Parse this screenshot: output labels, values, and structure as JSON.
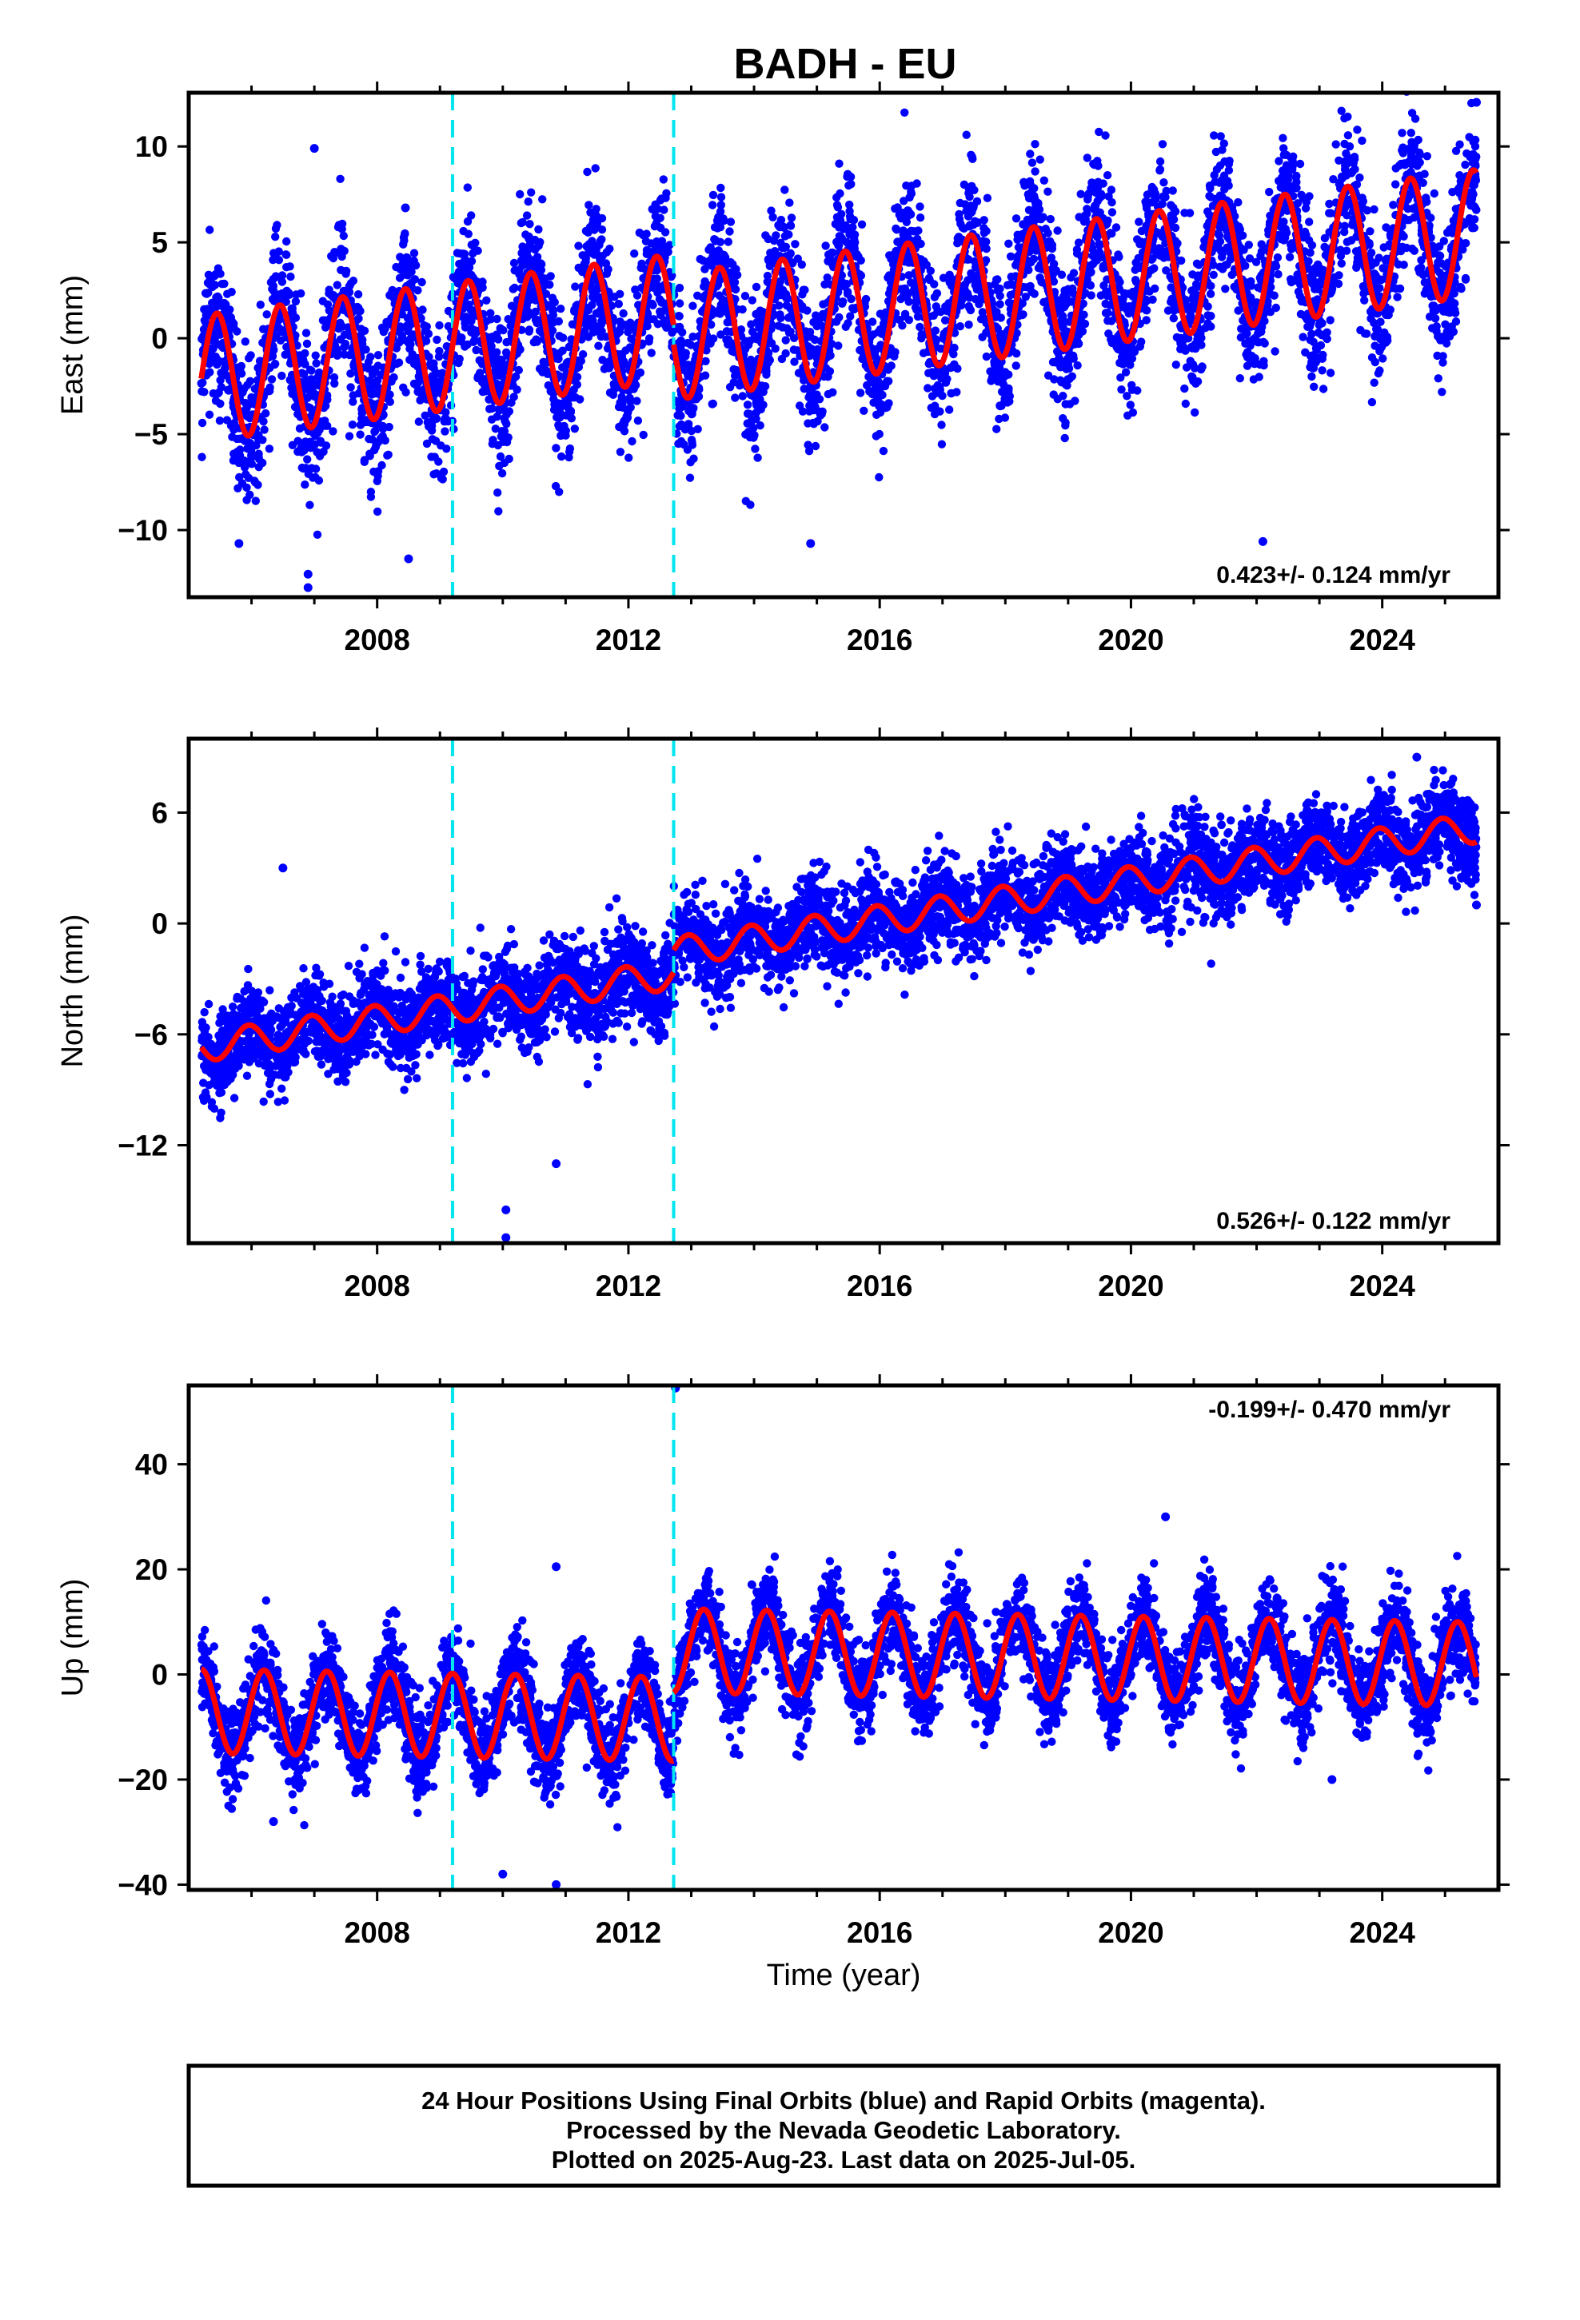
{
  "title": "BADH - EU",
  "xlabel": "Time (year)",
  "footer": {
    "lines": [
      "24 Hour Positions Using Final Orbits (blue) and Rapid Orbits (magenta).",
      "Processed by the Nevada Geodetic Laboratory.",
      "Plotted on 2025-Aug-23. Last data on 2025-Jul-05."
    ]
  },
  "colors": {
    "data_points": "#0000ff",
    "model_fit": "#ff0000",
    "break_lines": "#00e5ee",
    "frame": "#000000"
  },
  "chart_data": [
    {
      "type": "scatter",
      "component": "east",
      "ylabel": "East (mm)",
      "rate_text": "0.423+/- 0.124 mm/yr",
      "rate_position": "bottom-right",
      "xlim": [
        2005.0,
        2025.85
      ],
      "ylim": [
        -13.5,
        12.8
      ],
      "x_ticks": [
        2008,
        2012,
        2016,
        2020,
        2024
      ],
      "x_tick_labels": [
        "2008",
        "2012",
        "2016",
        "2020",
        "2024"
      ],
      "y_ticks": [
        -10,
        -5,
        0,
        5,
        10
      ],
      "y_tick_labels": [
        "−10",
        "−5",
        "0",
        "5",
        "10"
      ],
      "breaks": [
        2009.2,
        2012.72
      ],
      "series": [
        {
          "kind": "points",
          "x_range": [
            2005.2,
            2025.5
          ],
          "model": {
            "intercept": -2.1,
            "rate": 0.423,
            "annual_amp": 3.3,
            "phase": 0.0,
            "offset_at_2012.72": -1.0,
            "amp_growth": 0.0
          },
          "noise_sd": 1.9,
          "count": 5600
        },
        {
          "kind": "fit_line",
          "x_range": [
            2005.2,
            2025.5
          ]
        }
      ],
      "outliers": [
        [
          2007.0,
          9.9
        ],
        [
          2008.45,
          6.8
        ],
        [
          2006.9,
          -13.0
        ],
        [
          2006.9,
          -12.3
        ],
        [
          2025.5,
          12.3
        ],
        [
          2008.5,
          -11.5
        ],
        [
          2022.1,
          -10.6
        ],
        [
          2005.8,
          -10.7
        ],
        [
          2014.9,
          -10.7
        ]
      ]
    },
    {
      "type": "scatter",
      "component": "north",
      "ylabel": "North (mm)",
      "rate_text": "0.526+/- 0.122 mm/yr",
      "rate_position": "bottom-right",
      "xlim": [
        2005.0,
        2025.85
      ],
      "ylim": [
        -17.3,
        10.0
      ],
      "x_ticks": [
        2008,
        2012,
        2016,
        2020,
        2024
      ],
      "x_tick_labels": [
        "2008",
        "2012",
        "2016",
        "2020",
        "2024"
      ],
      "y_ticks": [
        -12,
        -6,
        0,
        6
      ],
      "y_tick_labels": [
        "−12",
        "−6",
        "0",
        "6"
      ],
      "breaks": [
        2009.2,
        2012.72
      ],
      "series": [
        {
          "kind": "points",
          "x_range": [
            2005.2,
            2025.5
          ],
          "model": {
            "intercept": -6.7,
            "rate": 0.526,
            "annual_amp": 0.8,
            "phase": 0.5,
            "offset_at_2012.72": 1.2,
            "amp_growth": 0.0
          },
          "noise_sd": 1.2,
          "count": 5600
        },
        {
          "kind": "fit_line",
          "x_range": [
            2005.2,
            2025.5
          ]
        }
      ],
      "outliers": [
        [
          2006.5,
          3.0
        ],
        [
          2010.05,
          -17.0
        ],
        [
          2010.05,
          -15.5
        ],
        [
          2010.85,
          -13.0
        ],
        [
          2024.55,
          9.0
        ],
        [
          2025.5,
          1.0
        ]
      ]
    },
    {
      "type": "scatter",
      "component": "up",
      "ylabel": "Up (mm)",
      "rate_text": "-0.199+/- 0.470 mm/yr",
      "rate_position": "top-right",
      "xlim": [
        2005.0,
        2025.85
      ],
      "ylim": [
        -41.0,
        55.0
      ],
      "x_ticks": [
        2008,
        2012,
        2016,
        2020,
        2024
      ],
      "x_tick_labels": [
        "2008",
        "2012",
        "2016",
        "2020",
        "2024"
      ],
      "y_ticks": [
        -40,
        -20,
        0,
        20,
        40
      ],
      "y_tick_labels": [
        "−40",
        "−20",
        "0",
        "20",
        "40"
      ],
      "breaks": [
        2009.2,
        2012.72
      ],
      "series": [
        {
          "kind": "points",
          "x_range": [
            2005.2,
            2025.5
          ],
          "model": {
            "intercept": -7.0,
            "rate": -0.199,
            "annual_amp": 8.0,
            "phase": 0.25,
            "offset_at_2012.72": 13.0,
            "amp_growth": 0.0
          },
          "noise_sd": 4.2,
          "count": 5600
        },
        {
          "kind": "fit_line",
          "x_range": [
            2005.2,
            2025.5
          ]
        }
      ],
      "outliers": [
        [
          2012.75,
          54.5
        ],
        [
          2010.85,
          20.5
        ],
        [
          2010.0,
          -38.0
        ],
        [
          2010.85,
          -40.0
        ],
        [
          2023.2,
          -20.0
        ],
        [
          2006.35,
          -28.0
        ],
        [
          2020.55,
          30.0
        ]
      ]
    }
  ]
}
